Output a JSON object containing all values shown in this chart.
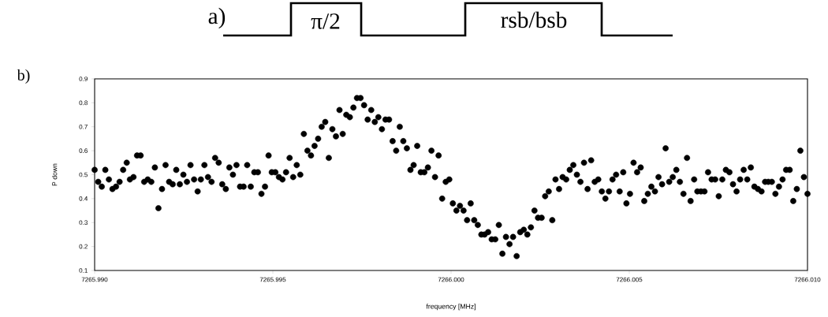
{
  "chart_data": {
    "type": "scatter",
    "xlabel": "frequency [MHz]",
    "ylabel": "P down",
    "annotations": [
      "a)",
      "π/2",
      "rsb/bsb",
      "b)"
    ],
    "xlim": [
      7265.99,
      7266.01
    ],
    "xticks": [
      {
        "value": 7265.99,
        "label": "7265.990"
      },
      {
        "value": 7265.995,
        "label": "7265.995"
      },
      {
        "value": 7266.0,
        "label": "7266.000"
      },
      {
        "value": 7266.005,
        "label": "7266.005"
      },
      {
        "value": 7266.01,
        "label": "7266.010"
      }
    ],
    "ylim": [
      0.1,
      0.9
    ],
    "yticks": [
      0.1,
      0.2,
      0.3,
      0.4,
      0.5,
      0.6,
      0.7,
      0.8,
      0.9
    ],
    "marker": "circle",
    "x": [
      7265.99,
      7265.9901,
      7265.9902,
      7265.9903,
      7265.9904,
      7265.9905,
      7265.9906,
      7265.9907,
      7265.9908,
      7265.9909,
      7265.99099,
      7265.99109,
      7265.99119,
      7265.99129,
      7265.99139,
      7265.99149,
      7265.99159,
      7265.99169,
      7265.99179,
      7265.99189,
      7265.99199,
      7265.99209,
      7265.99219,
      7265.99229,
      7265.99239,
      7265.99249,
      7265.99259,
      7265.99269,
      7265.99279,
      7265.99289,
      7265.99298,
      7265.99308,
      7265.99318,
      7265.99328,
      7265.99338,
      7265.99348,
      7265.99358,
      7265.99368,
      7265.99378,
      7265.99388,
      7265.99398,
      7265.99408,
      7265.99418,
      7265.99428,
      7265.99438,
      7265.99448,
      7265.99458,
      7265.99468,
      7265.99478,
      7265.99488,
      7265.99497,
      7265.99507,
      7265.99517,
      7265.99527,
      7265.99537,
      7265.99547,
      7265.99557,
      7265.99567,
      7265.99577,
      7265.99587,
      7265.99597,
      7265.99607,
      7265.99617,
      7265.99627,
      7265.99637,
      7265.99647,
      7265.99657,
      7265.99667,
      7265.99677,
      7265.99687,
      7265.99696,
      7265.99706,
      7265.99716,
      7265.99726,
      7265.99736,
      7265.99746,
      7265.99756,
      7265.99766,
      7265.99776,
      7265.99786,
      7265.99796,
      7265.99806,
      7265.99816,
      7265.99826,
      7265.99836,
      7265.99846,
      7265.99856,
      7265.99866,
      7265.99876,
      7265.99886,
      7265.99895,
      7265.99905,
      7265.99915,
      7265.99925,
      7265.99935,
      7265.99945,
      7265.99955,
      7265.99965,
      7265.99975,
      7265.99985,
      7265.99995,
      7266.00005,
      7266.00015,
      7266.00025,
      7266.00035,
      7266.00045,
      7266.00055,
      7266.00065,
      7266.00075,
      7266.00085,
      7266.00094,
      7266.00104,
      7266.00114,
      7266.00124,
      7266.00134,
      7266.00144,
      7266.00154,
      7266.00164,
      7266.00174,
      7266.00184,
      7266.00194,
      7266.00204,
      7266.00214,
      7266.00224,
      7266.00234,
      7266.00244,
      7266.00254,
      7266.00264,
      7266.00274,
      7266.00284,
      7266.00293,
      7266.00303,
      7266.00313,
      7266.00323,
      7266.00333,
      7266.00343,
      7266.00353,
      7266.00363,
      7266.00373,
      7266.00383,
      7266.00393,
      7266.00403,
      7266.00413,
      7266.00423,
      7266.00433,
      7266.00443,
      7266.00453,
      7266.00463,
      7266.00473,
      7266.00483,
      7266.00492,
      7266.00502,
      7266.00512,
      7266.00522,
      7266.00532,
      7266.00542,
      7266.00552,
      7266.00562,
      7266.00572,
      7266.00582,
      7266.00592,
      7266.00602,
      7266.00612,
      7266.00622,
      7266.00632,
      7266.00642,
      7266.00652,
      7266.00662,
      7266.00672,
      7266.00682,
      7266.00691,
      7266.00701,
      7266.00711,
      7266.00721,
      7266.00731,
      7266.00741,
      7266.00751,
      7266.00761,
      7266.00771,
      7266.00781,
      7266.00791,
      7266.00801,
      7266.00811,
      7266.00821,
      7266.00831,
      7266.00841,
      7266.00851,
      7266.00861,
      7266.00871,
      7266.00881,
      7266.0089,
      7266.009,
      7266.0091,
      7266.0092,
      7266.0093,
      7266.0094,
      7266.0095,
      7266.0096,
      7266.0097,
      7266.0098,
      7266.0099,
      7266.01
    ],
    "series": [
      {
        "color": "#000000",
        "values": [
          0.52,
          0.47,
          0.45,
          0.52,
          0.48,
          0.44,
          0.45,
          0.47,
          0.52,
          0.55,
          0.48,
          0.49,
          0.58,
          0.58,
          0.47,
          0.48,
          0.47,
          0.53,
          0.36,
          0.44,
          0.54,
          0.47,
          0.46,
          0.52,
          0.46,
          0.5,
          0.47,
          0.54,
          0.48,
          0.43,
          0.48,
          0.54,
          0.49,
          0.47,
          0.57,
          0.55,
          0.46,
          0.44,
          0.53,
          0.5,
          0.54,
          0.45,
          0.45,
          0.54,
          0.45,
          0.51,
          0.51,
          0.42,
          0.45,
          0.58,
          0.51,
          0.51,
          0.49,
          0.48,
          0.51,
          0.57,
          0.49,
          0.54,
          0.5,
          0.67,
          0.6,
          0.58,
          0.62,
          0.65,
          0.7,
          0.72,
          0.57,
          0.69,
          0.66,
          0.77,
          0.67,
          0.75,
          0.74,
          0.78,
          0.82,
          0.82,
          0.79,
          0.73,
          0.77,
          0.72,
          0.74,
          0.69,
          0.73,
          0.73,
          0.64,
          0.6,
          0.7,
          0.64,
          0.61,
          0.52,
          0.54,
          0.62,
          0.51,
          0.51,
          0.53,
          0.6,
          0.49,
          0.58,
          0.4,
          0.47,
          0.48,
          0.38,
          0.35,
          0.37,
          0.35,
          0.31,
          0.38,
          0.31,
          0.29,
          0.25,
          0.25,
          0.26,
          0.23,
          0.23,
          0.29,
          0.17,
          0.24,
          0.21,
          0.24,
          0.16,
          0.26,
          0.27,
          0.25,
          0.28,
          0.35,
          0.32,
          0.32,
          0.41,
          0.43,
          0.31,
          0.48,
          0.44,
          0.49,
          0.48,
          0.52,
          0.54,
          0.5,
          0.47,
          0.55,
          0.44,
          0.56,
          0.47,
          0.48,
          0.43,
          0.4,
          0.43,
          0.48,
          0.5,
          0.43,
          0.51,
          0.38,
          0.42,
          0.55,
          0.51,
          0.53,
          0.39,
          0.42,
          0.45,
          0.43,
          0.49,
          0.46,
          0.61,
          0.47,
          0.49,
          0.52,
          0.47,
          0.42,
          0.57,
          0.39,
          0.48,
          0.43,
          0.43,
          0.43,
          0.51,
          0.48,
          0.48,
          0.41,
          0.48,
          0.52,
          0.51,
          0.46,
          0.43,
          0.48,
          0.52,
          0.48,
          0.53,
          0.45,
          0.44,
          0.43,
          0.47,
          0.47,
          0.47,
          0.42,
          0.45,
          0.48,
          0.52,
          0.52,
          0.39,
          0.44,
          0.6,
          0.49,
          0.42
        ]
      }
    ]
  }
}
